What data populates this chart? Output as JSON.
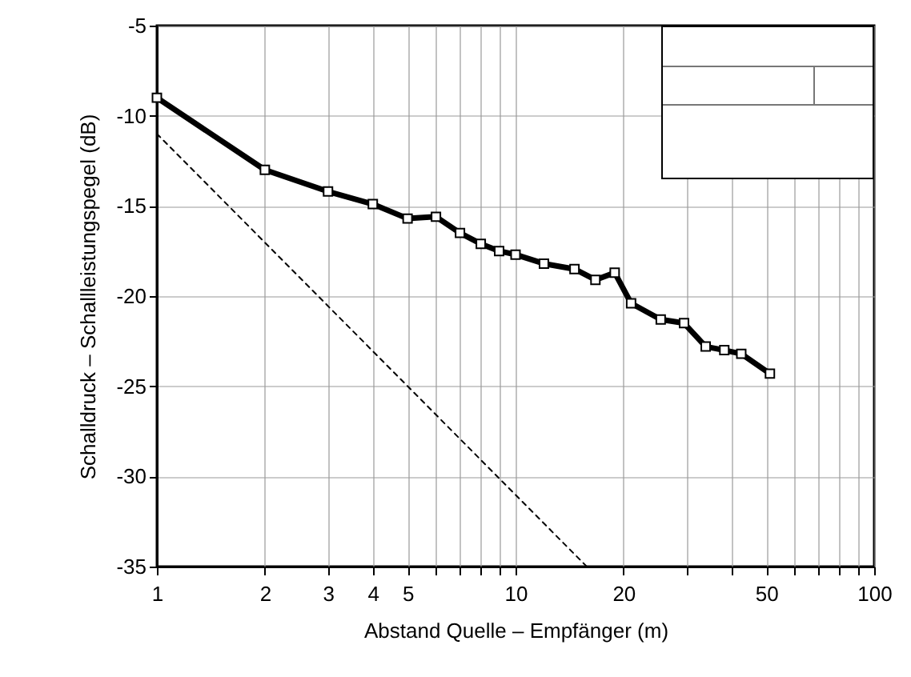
{
  "chart_data": {
    "type": "line",
    "xlabel": "Abstand Quelle – Empfänger (m)",
    "ylabel": "Schalldruck – Schallleistungspegel (dB)",
    "log": "x",
    "grid": true,
    "xlim": [
      1,
      100
    ],
    "ylim": [
      -35,
      -5
    ],
    "xticks": [
      1,
      2,
      3,
      4,
      5,
      {
        "value": 6,
        "label": null
      },
      {
        "value": 7,
        "label": null
      },
      {
        "value": 8,
        "label": null
      },
      {
        "value": 9,
        "label": null
      },
      10,
      20,
      {
        "value": 30,
        "label": null
      },
      {
        "value": 40,
        "label": null
      },
      50,
      {
        "value": 60,
        "label": null
      },
      {
        "value": 70,
        "label": null
      },
      {
        "value": 80,
        "label": null
      },
      {
        "value": 90,
        "label": null
      },
      100
    ],
    "yticks": [
      -35,
      -30,
      -25,
      -20,
      -15,
      -10,
      -5
    ],
    "series": [
      {
        "color": "#000000",
        "marker": "square",
        "line_style": "solid",
        "x": [
          1,
          2,
          3,
          4,
          5,
          6,
          7,
          8,
          9,
          10,
          12,
          14.6,
          16.7,
          18.9,
          21,
          25.4,
          29.5,
          33.9,
          38.2,
          42.6,
          51.2
        ],
        "values": [
          -9,
          -13,
          -14.2,
          -14.9,
          -15.7,
          -15.6,
          -16.5,
          -17.1,
          -17.5,
          -17.7,
          -18.2,
          -18.5,
          -19.1,
          -18.7,
          -20.4,
          -21.3,
          -21.5,
          -22.8,
          -23,
          -23.2,
          -24.3
        ]
      },
      {
        "color": "#000000",
        "marker": "none",
        "line_style": "dashed",
        "x": [
          1,
          15.8
        ],
        "values": [
          -11,
          -35
        ]
      }
    ]
  }
}
